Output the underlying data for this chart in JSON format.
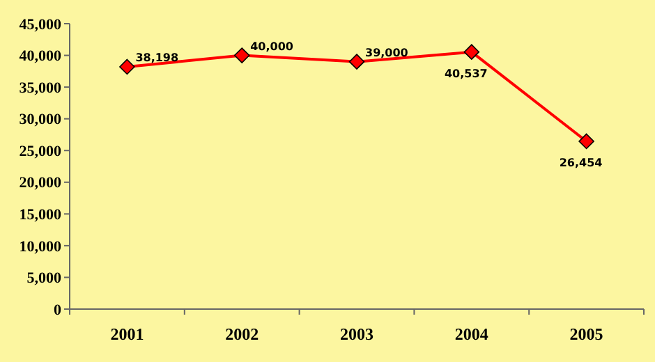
{
  "chart_data": {
    "type": "line",
    "categories": [
      "2001",
      "2002",
      "2003",
      "2004",
      "2005"
    ],
    "series": [
      {
        "color": "#ff0000",
        "values": [
          38198,
          40000,
          39000,
          40537,
          26454
        ],
        "value_labels": [
          "38,198",
          "40,000",
          "39,000",
          "40,537",
          "26,454"
        ]
      }
    ],
    "ylim": [
      0,
      45000
    ],
    "yticks": [
      {
        "value": 0,
        "label": "0"
      },
      {
        "value": 5000,
        "label": "5,000"
      },
      {
        "value": 10000,
        "label": "10,000"
      },
      {
        "value": 15000,
        "label": "15,000"
      },
      {
        "value": 20000,
        "label": "20,000"
      },
      {
        "value": 25000,
        "label": "25,000"
      },
      {
        "value": 30000,
        "label": "30,000"
      },
      {
        "value": 35000,
        "label": "35,000"
      },
      {
        "value": 40000,
        "label": "40,000"
      },
      {
        "value": 45000,
        "label": "45,000"
      }
    ],
    "marker": "diamond",
    "grid": false
  }
}
